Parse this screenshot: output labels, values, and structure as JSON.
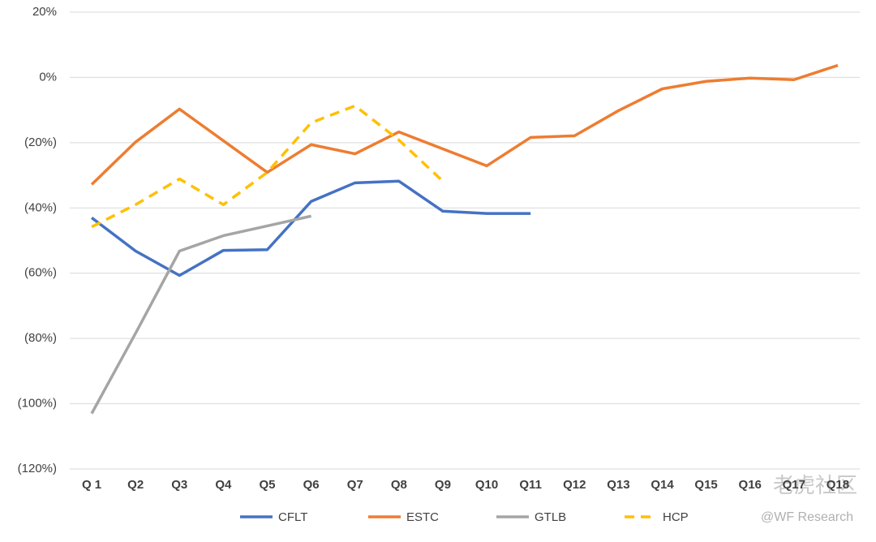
{
  "chart_data": {
    "type": "line",
    "categories": [
      "Q 1",
      "Q2",
      "Q3",
      "Q4",
      "Q5",
      "Q6",
      "Q7",
      "Q8",
      "Q9",
      "Q10",
      "Q11",
      "Q12",
      "Q13",
      "Q14",
      "Q15",
      "Q16",
      "Q17",
      "Q18"
    ],
    "series": [
      {
        "name": "CFLT",
        "color": "#4472c4",
        "dash": false,
        "values": [
          -43,
          -53.2,
          -60.7,
          -53,
          -52.8,
          -38,
          -32.3,
          -31.8,
          -41,
          -41.7,
          -41.7,
          null,
          null,
          null,
          null,
          null,
          null,
          null
        ]
      },
      {
        "name": "ESTC",
        "color": "#ed7d31",
        "dash": false,
        "values": [
          -32.8,
          -19.8,
          -9.7,
          -19.4,
          -29.1,
          -20.6,
          -23.4,
          -16.7,
          -21.9,
          -27.1,
          -18.4,
          -17.9,
          -10.2,
          -3.5,
          -1.2,
          -0.2,
          -0.7,
          3.7
        ]
      },
      {
        "name": "GTLB",
        "color": "#a5a5a5",
        "dash": false,
        "values": [
          -103,
          -78.4,
          -53.2,
          -48.5,
          -45.5,
          -42.5,
          null,
          null,
          null,
          null,
          null,
          null,
          null,
          null,
          null,
          null,
          null,
          null
        ]
      },
      {
        "name": "HCP",
        "color": "#ffc000",
        "dash": true,
        "values": [
          -45.8,
          -39,
          -31.1,
          -39,
          -29.1,
          -13.9,
          -8.7,
          -19.2,
          -31.8,
          null,
          null,
          null,
          null,
          null,
          null,
          null,
          null,
          null
        ]
      }
    ],
    "ylim": [
      -120,
      20
    ],
    "yticks": [
      {
        "value": 20,
        "label": "20%"
      },
      {
        "value": 0,
        "label": "0%"
      },
      {
        "value": -20,
        "label": "(20%)"
      },
      {
        "value": -40,
        "label": "(40%)"
      },
      {
        "value": -60,
        "label": "(60%)"
      },
      {
        "value": -80,
        "label": "(80%)"
      },
      {
        "value": -100,
        "label": "(100%)"
      },
      {
        "value": -120,
        "label": "(120%)"
      }
    ],
    "grid": true,
    "legend": "bottom",
    "annotations": [
      "老虎社区",
      "@WF Research"
    ]
  }
}
